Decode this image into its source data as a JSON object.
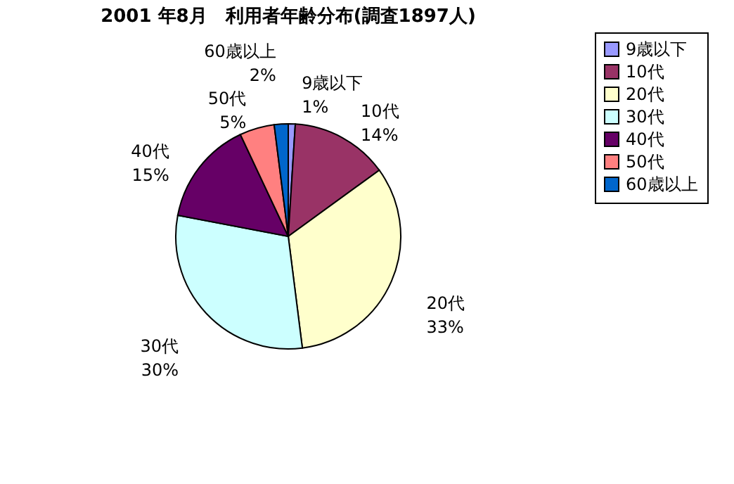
{
  "chart_data": {
    "type": "pie",
    "title": "2001 年8月　利用者年齢分布(調査1897人)",
    "categories": [
      "9歳以下",
      "10代",
      "20代",
      "30代",
      "40代",
      "50代",
      "60歳以上"
    ],
    "values": [
      1,
      14,
      33,
      30,
      15,
      5,
      2
    ],
    "value_labels": [
      "1%",
      "14%",
      "33%",
      "30%",
      "15%",
      "5%",
      "2%"
    ],
    "colors": [
      "#9999ff",
      "#993366",
      "#ffffcc",
      "#ccffff",
      "#660066",
      "#ff8080",
      "#0066cc"
    ],
    "legend": "right"
  }
}
